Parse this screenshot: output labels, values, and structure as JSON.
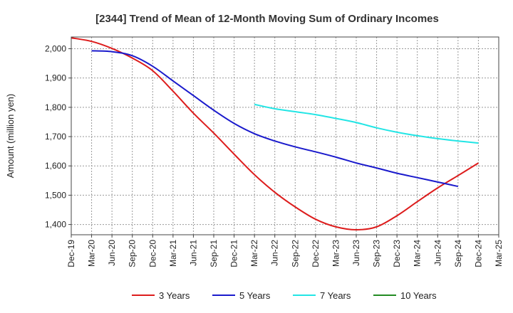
{
  "chart_data": {
    "type": "line",
    "title": "[2344]  Trend of Mean of 12-Month Moving Sum of Ordinary Incomes",
    "xlabel": "",
    "ylabel": "Amount (million yen)",
    "ylim": [
      1365,
      2040
    ],
    "y_ticks": [
      1400,
      1500,
      1600,
      1700,
      1800,
      1900,
      2000
    ],
    "y_tick_labels": [
      "1,400",
      "1,500",
      "1,600",
      "1,700",
      "1,800",
      "1,900",
      "2,000"
    ],
    "x_tick_labels": [
      "Dec-19",
      "Mar-20",
      "Jun-20",
      "Sep-20",
      "Dec-20",
      "Mar-21",
      "Jun-21",
      "Sep-21",
      "Dec-21",
      "Mar-22",
      "Jun-22",
      "Sep-22",
      "Dec-22",
      "Mar-23",
      "Jun-23",
      "Sep-23",
      "Dec-23",
      "Mar-24",
      "Jun-24",
      "Sep-24",
      "Dec-24",
      "Mar-25"
    ],
    "grid": true,
    "legend_position": "bottom",
    "series": [
      {
        "name": "3 Years",
        "color": "#dd1c1c",
        "start_index": 0,
        "values": [
          2037,
          2025,
          2001,
          1968,
          1925,
          1855,
          1780,
          1712,
          1640,
          1570,
          1510,
          1460,
          1418,
          1392,
          1382,
          1392,
          1430,
          1478,
          1525,
          1567,
          1610
        ]
      },
      {
        "name": "5 Years",
        "color": "#1a1acc",
        "start_index": 1,
        "values": [
          1993,
          1990,
          1976,
          1940,
          1890,
          1840,
          1790,
          1745,
          1710,
          1685,
          1665,
          1648,
          1630,
          1610,
          1593,
          1575,
          1560,
          1545,
          1530
        ]
      },
      {
        "name": "7 Years",
        "color": "#22e5e5",
        "start_index": 9,
        "values": [
          1810,
          1795,
          1785,
          1775,
          1762,
          1748,
          1730,
          1715,
          1703,
          1693,
          1685,
          1678
        ]
      },
      {
        "name": "10 Years",
        "color": "#228b22",
        "start_index": 0,
        "values": []
      }
    ]
  }
}
